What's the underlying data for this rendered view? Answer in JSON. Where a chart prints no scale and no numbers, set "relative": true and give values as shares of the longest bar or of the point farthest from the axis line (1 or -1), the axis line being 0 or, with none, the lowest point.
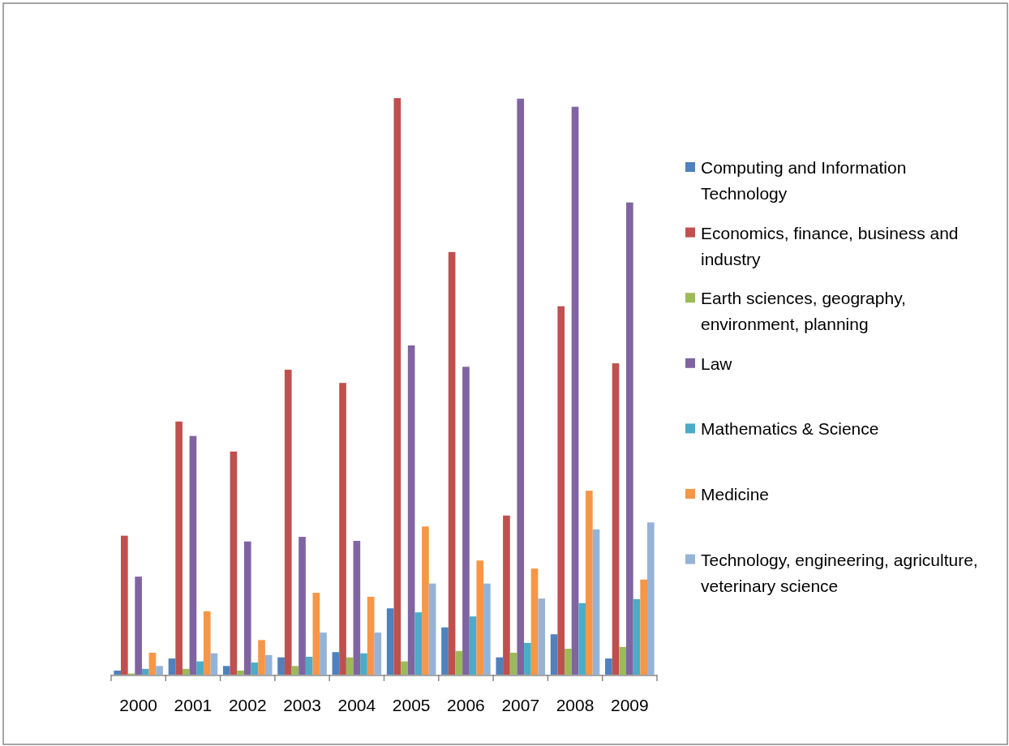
{
  "chart_data": {
    "type": "bar",
    "relative": true,
    "categories": [
      "2000",
      "2001",
      "2002",
      "2003",
      "2004",
      "2005",
      "2006",
      "2007",
      "2008",
      "2009"
    ],
    "legend": "right",
    "series": [
      {
        "name": "Computing and Information Technology",
        "color": "#4f81bd",
        "values": [
          0.007,
          0.028,
          0.015,
          0.03,
          0.039,
          0.115,
          0.082,
          0.03,
          0.07,
          0.028
        ]
      },
      {
        "name": "Economics, finance, business and industry",
        "color": "#c0504d",
        "values": [
          0.241,
          0.439,
          0.387,
          0.529,
          0.506,
          1,
          0.733,
          0.276,
          0.639,
          0.54
        ]
      },
      {
        "name": "Earth sciences, geography, environment, planning",
        "color": "#9bbb59",
        "values": [
          0.002,
          0.01,
          0.007,
          0.015,
          0.03,
          0.023,
          0.041,
          0.038,
          0.045,
          0.048
        ]
      },
      {
        "name": "Law",
        "color": "#8064a2",
        "values": [
          0.17,
          0.414,
          0.231,
          0.239,
          0.232,
          0.571,
          0.534,
          0.999,
          0.985,
          0.819
        ]
      },
      {
        "name": "Mathematics & Science",
        "color": "#4bacc6",
        "values": [
          0.01,
          0.023,
          0.021,
          0.031,
          0.037,
          0.108,
          0.101,
          0.055,
          0.124,
          0.131
        ]
      },
      {
        "name": "Medicine",
        "color": "#f79646",
        "values": [
          0.038,
          0.11,
          0.06,
          0.142,
          0.135,
          0.257,
          0.198,
          0.184,
          0.319,
          0.165
        ]
      },
      {
        "name": "Technology, engineering, agriculture, veterinary science",
        "color": "#95b3d7",
        "values": [
          0.015,
          0.037,
          0.034,
          0.073,
          0.073,
          0.158,
          0.158,
          0.132,
          0.252,
          0.264
        ]
      }
    ]
  }
}
